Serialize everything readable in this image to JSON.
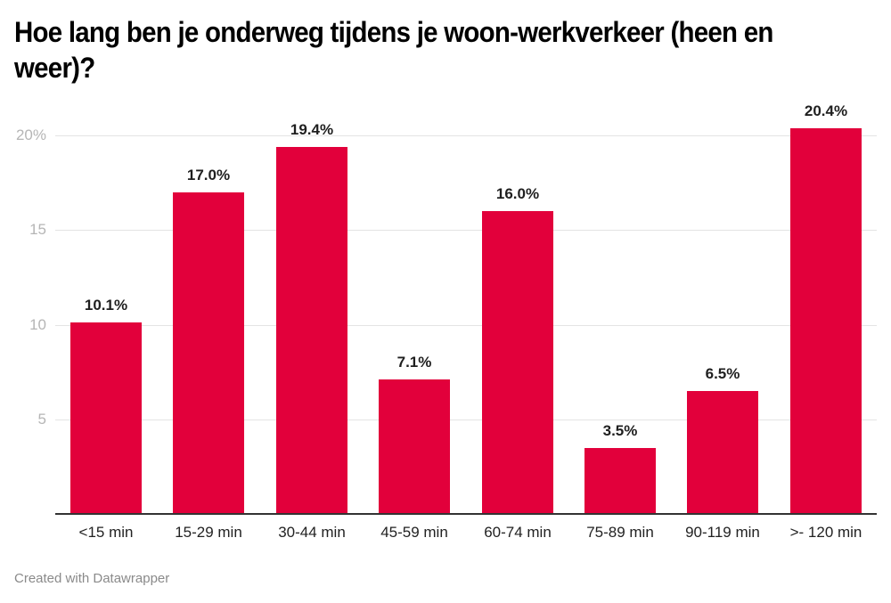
{
  "title": "Hoe lang ben je onderweg tijdens je woon-werkverkeer (heen en weer)?",
  "footer": "Created with Datawrapper",
  "colors": {
    "bar": "#e2003b",
    "gridline": "#e4e4e4",
    "axis_tick_text": "#b5b5b5",
    "baseline": "#333333"
  },
  "chart_data": {
    "type": "bar",
    "title": "Hoe lang ben je onderweg tijdens je woon-werkverkeer (heen en weer)?",
    "xlabel": "",
    "ylabel": "",
    "categories": [
      "<15 min",
      "15-29 min",
      "30-44 min",
      "45-59 min",
      "60-74 min",
      "75-89 min",
      "90-119 min",
      ">- 120 min"
    ],
    "values": [
      10.1,
      17.0,
      19.4,
      7.1,
      16.0,
      3.5,
      6.5,
      20.4
    ],
    "value_labels": [
      "10.1%",
      "17.0%",
      "19.4%",
      "7.1%",
      "16.0%",
      "3.5%",
      "6.5%",
      "20.4%"
    ],
    "unit": "%",
    "ylim": [
      0,
      20
    ],
    "yticks": [
      5,
      10,
      15,
      20
    ],
    "ytick_labels": [
      "5",
      "10",
      "15",
      "20%"
    ],
    "grid": true,
    "legend": null
  }
}
